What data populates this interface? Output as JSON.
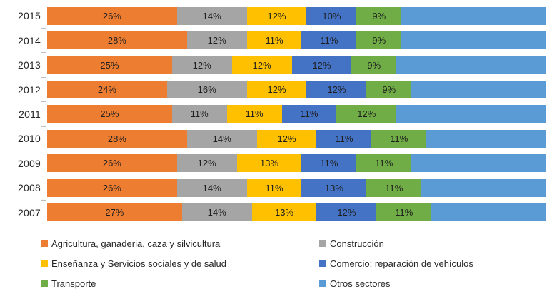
{
  "chart": {
    "background": "#FFFFFF",
    "axis_color": "#BFBFBF",
    "category_label_color": "#262626",
    "data_label_color": "#1F1F1F"
  },
  "chart_data": {
    "type": "bar",
    "orientation": "horizontal",
    "stacked": true,
    "unit": "%",
    "title": "",
    "xlabel": "",
    "ylabel": "",
    "xlim": [
      0,
      100
    ],
    "grid": false,
    "legend_position": "bottom",
    "categories": [
      "2015",
      "2014",
      "2013",
      "2012",
      "2011",
      "2010",
      "2009",
      "2008",
      "2007"
    ],
    "series": [
      {
        "name": "Agricultura, ganaderia, caza y silvicultura",
        "color": "#ED7D31",
        "show_labels": true,
        "values": [
          26,
          28,
          25,
          24,
          25,
          28,
          26,
          26,
          27
        ]
      },
      {
        "name": "Construcción",
        "color": "#A5A5A5",
        "show_labels": true,
        "values": [
          14,
          12,
          12,
          16,
          11,
          14,
          12,
          14,
          14
        ]
      },
      {
        "name": "Enseñanza  y Servicios sociales y de salud",
        "color": "#FFC000",
        "show_labels": true,
        "values": [
          12,
          11,
          12,
          12,
          11,
          12,
          13,
          11,
          13
        ]
      },
      {
        "name": "Comercio; reparación de vehículos",
        "color": "#4472C4",
        "show_labels": true,
        "values": [
          10,
          11,
          12,
          12,
          11,
          11,
          11,
          13,
          12
        ]
      },
      {
        "name": "Transporte",
        "color": "#70AD47",
        "show_labels": true,
        "values": [
          9,
          9,
          9,
          9,
          12,
          11,
          11,
          11,
          11
        ]
      },
      {
        "name": "Otros sectores",
        "color": "#5B9BD5",
        "show_labels": false,
        "values": [
          29,
          29,
          30,
          27,
          30,
          24,
          27,
          25,
          23
        ]
      }
    ]
  }
}
